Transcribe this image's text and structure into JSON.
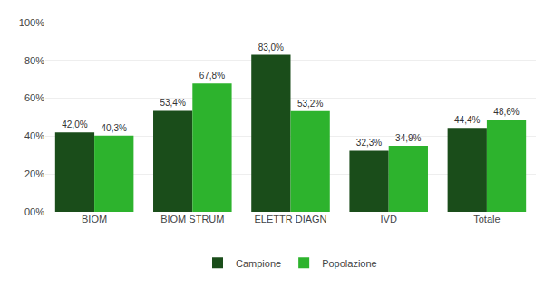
{
  "chart_data": {
    "type": "bar",
    "categories": [
      "BIOM",
      "BIOM STRUM",
      "ELETTR DIAGN",
      "IVD",
      "Totale"
    ],
    "series": [
      {
        "name": "Campione",
        "color": "#1a4d1a",
        "values": [
          42.0,
          53.4,
          83.0,
          32.3,
          44.4
        ],
        "value_labels": [
          "42,0%",
          "53,4%",
          "83,0%",
          "32,3%",
          "44,4%"
        ]
      },
      {
        "name": "Popolazione",
        "color": "#2db32d",
        "values": [
          40.3,
          67.8,
          53.2,
          34.9,
          48.6
        ],
        "value_labels": [
          "40,3%",
          "67,8%",
          "53,2%",
          "34,9%",
          "48,6%"
        ]
      }
    ],
    "ylim": [
      0,
      100
    ],
    "yticks": [
      {
        "value": 0,
        "label": "00%"
      },
      {
        "value": 20,
        "label": "20%"
      },
      {
        "value": 40,
        "label": "40%"
      },
      {
        "value": 60,
        "label": "60%"
      },
      {
        "value": 80,
        "label": "80%"
      },
      {
        "value": 100,
        "label": "100%"
      }
    ],
    "grid": true,
    "legend": "bottom",
    "data_labels": true
  }
}
